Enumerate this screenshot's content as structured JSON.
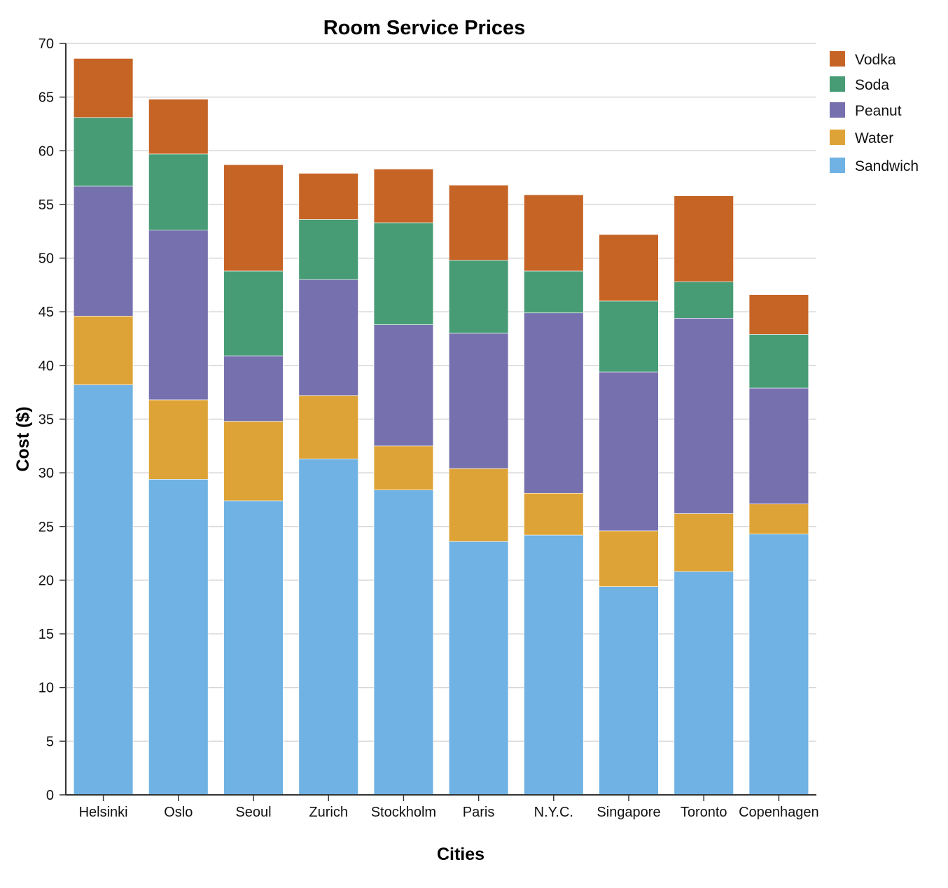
{
  "chart_data": {
    "type": "bar",
    "stacked": true,
    "title": "Room Service Prices",
    "xlabel": "Cities",
    "ylabel": "Cost ($)",
    "ylim": [
      0,
      70
    ],
    "yticks": [
      0,
      5,
      10,
      15,
      20,
      25,
      30,
      35,
      40,
      45,
      50,
      55,
      60,
      65,
      70
    ],
    "grid": "horizontal",
    "legend_position": "top-right",
    "categories": [
      "Helsinki",
      "Oslo",
      "Seoul",
      "Zurich",
      "Stockholm",
      "Paris",
      "N.Y.C.",
      "Singapore",
      "Toronto",
      "Copenhagen"
    ],
    "series": [
      {
        "name": "Sandwich",
        "color": "#6fb2e3",
        "values": [
          38.2,
          29.4,
          27.4,
          31.3,
          28.4,
          23.6,
          24.2,
          19.4,
          20.8,
          24.3
        ]
      },
      {
        "name": "Water",
        "color": "#dea337",
        "values": [
          6.4,
          7.4,
          7.4,
          5.9,
          4.1,
          6.8,
          3.9,
          5.2,
          5.4,
          2.8
        ]
      },
      {
        "name": "Peanut",
        "color": "#7671ae",
        "values": [
          12.1,
          15.8,
          6.1,
          10.8,
          11.3,
          12.6,
          16.8,
          14.8,
          18.2,
          10.8
        ]
      },
      {
        "name": "Soda",
        "color": "#479c76",
        "values": [
          6.4,
          7.1,
          7.9,
          5.6,
          9.5,
          6.8,
          3.9,
          6.6,
          3.4,
          5.0
        ]
      },
      {
        "name": "Vodka",
        "color": "#c66426",
        "values": [
          5.5,
          5.1,
          9.9,
          4.3,
          5.0,
          7.0,
          7.1,
          6.2,
          8.0,
          3.7
        ]
      }
    ],
    "legend_order": [
      "Vodka",
      "Soda",
      "Peanut",
      "Water",
      "Sandwich"
    ]
  }
}
